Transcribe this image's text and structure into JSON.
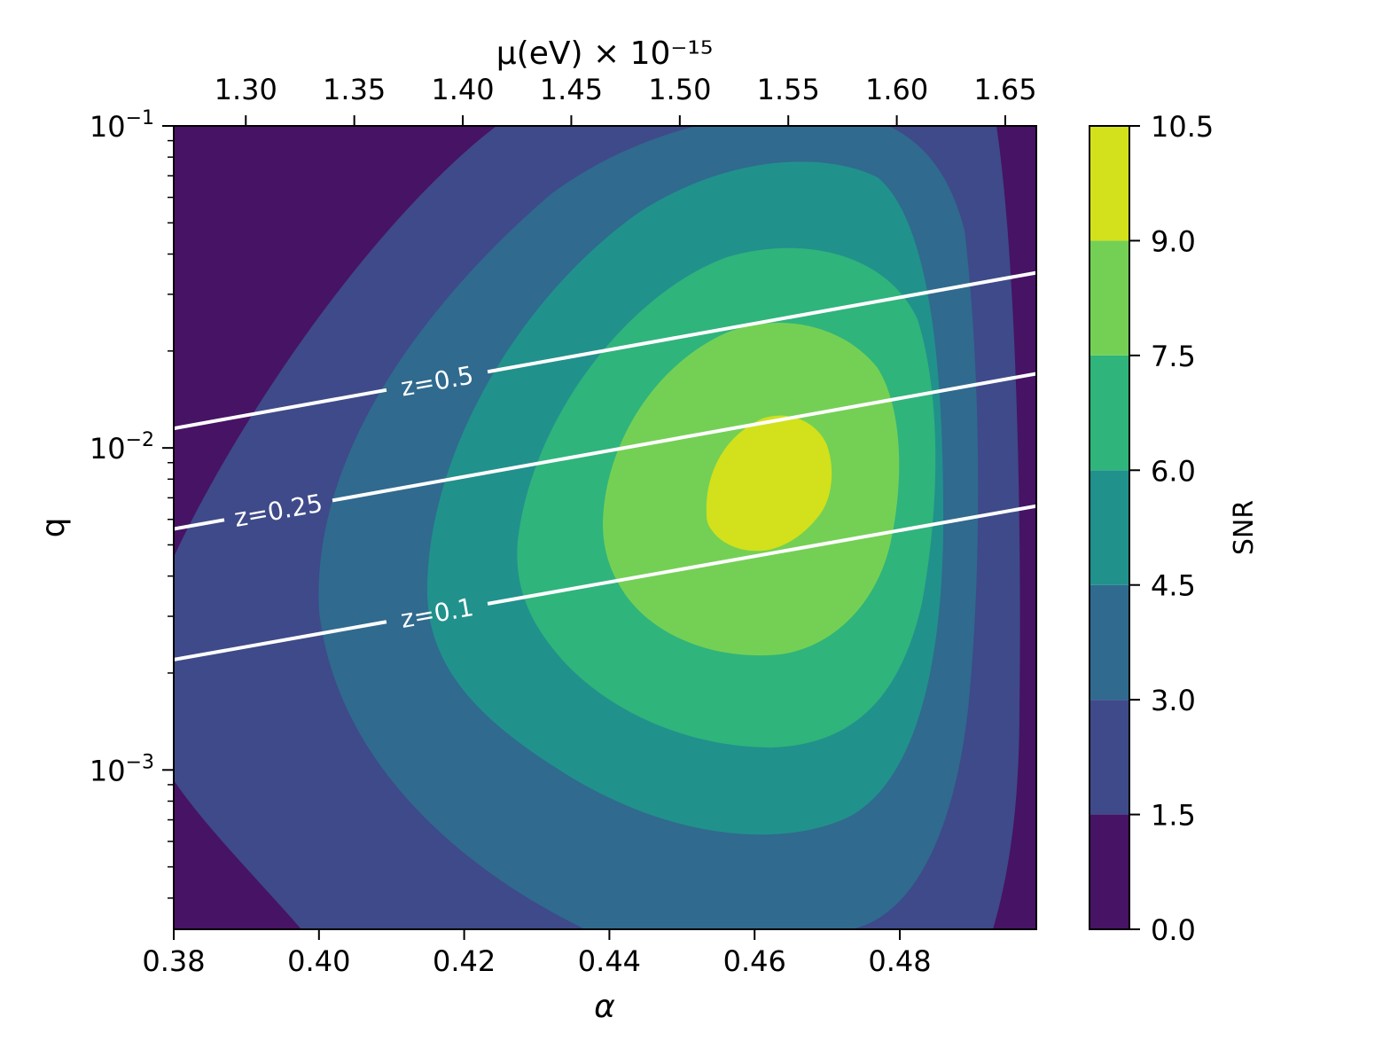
{
  "chart_data": {
    "type": "contourf",
    "bottom_axis": {
      "label": "α",
      "ticks": [
        0.38,
        0.4,
        0.42,
        0.44,
        0.46,
        0.48
      ],
      "tick_labels": [
        "0.38",
        "0.40",
        "0.42",
        "0.44",
        "0.46",
        "0.48"
      ],
      "range": [
        0.38,
        0.4988
      ]
    },
    "top_axis": {
      "label": "μ(eV) × 10⁻¹⁵",
      "ticks": [
        1.3,
        1.35,
        1.4,
        1.45,
        1.5,
        1.55,
        1.6,
        1.65
      ],
      "tick_labels": [
        "1.30",
        "1.35",
        "1.40",
        "1.45",
        "1.50",
        "1.55",
        "1.60",
        "1.65"
      ],
      "range": [
        1.2668,
        1.6643
      ]
    },
    "left_axis": {
      "label": "q",
      "scale": "log",
      "range": [
        0.00032,
        0.1
      ],
      "major_ticks": [
        0.001,
        0.01,
        0.1
      ],
      "tick_labels": [
        {
          "base": "10",
          "exp": "−3"
        },
        {
          "base": "10",
          "exp": "−2"
        },
        {
          "base": "10",
          "exp": "−1"
        }
      ],
      "minor_ticks": [
        0.0004,
        0.0005,
        0.0006,
        0.0007,
        0.0008,
        0.0009,
        0.002,
        0.003,
        0.004,
        0.005,
        0.006,
        0.007,
        0.008,
        0.009,
        0.02,
        0.03,
        0.04,
        0.05,
        0.06,
        0.07,
        0.08,
        0.09
      ]
    },
    "colorbar": {
      "label": "SNR",
      "levels": [
        0.0,
        1.5,
        3.0,
        4.5,
        6.0,
        7.5,
        9.0,
        10.5
      ],
      "tick_labels": [
        "0.0",
        "1.5",
        "3.0",
        "4.5",
        "6.0",
        "7.5",
        "9.0",
        "10.5"
      ],
      "colors": [
        "#471365",
        "#3e4a89",
        "#306a8e",
        "#21918c",
        "#2fb47c",
        "#74d055",
        "#d2e11b"
      ]
    },
    "snr_field": {
      "peak_snr": 10.2,
      "peak_alpha": 0.462,
      "peak_q": 0.0075
    },
    "redshift_contours": [
      {
        "label": "z=0.5",
        "alpha": [
          0.38,
          0.4988
        ],
        "q": [
          0.0115,
          0.035
        ]
      },
      {
        "label": "z=0.25",
        "alpha": [
          0.38,
          0.4988
        ],
        "q": [
          0.0056,
          0.017
        ]
      },
      {
        "label": "z=0.1",
        "alpha": [
          0.38,
          0.4988
        ],
        "q": [
          0.0022,
          0.0066
        ]
      }
    ],
    "line_color": "#ffffff"
  }
}
